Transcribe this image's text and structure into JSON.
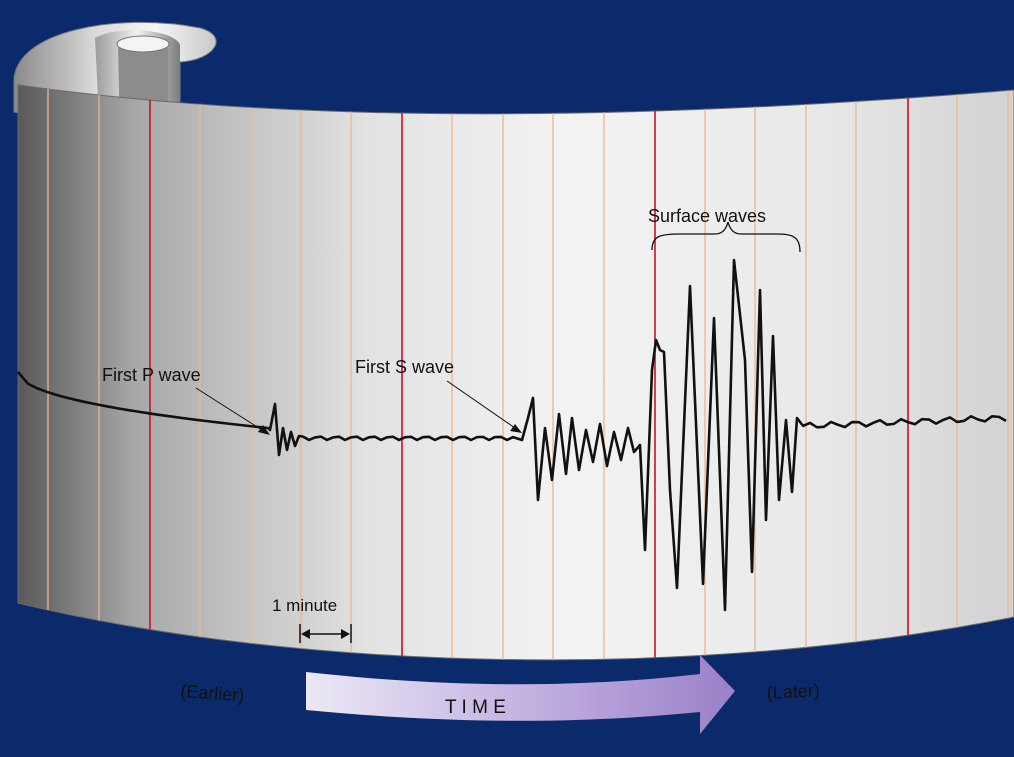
{
  "labels": {
    "first_p": "First P wave",
    "first_s": "First S wave",
    "surface": "Surface waves",
    "minute": "1 minute",
    "earlier": "(Earlier)",
    "later": "(Later)",
    "time": "T I M E"
  },
  "colors": {
    "frame": "#0b2a6b",
    "paper_mid": "#ededed",
    "paper_dark": "#6f6f6f",
    "red_line": "#c8102e",
    "orange_line": "#f0b58a",
    "trace": "#111111",
    "arrow_light": "#e7e2f2",
    "arrow_dark": "#a78fcf"
  },
  "icons": {
    "roll": "paper-roll-curl",
    "time_arrow": "right-arrow",
    "minute_scale": "double-headed-arrow"
  }
}
